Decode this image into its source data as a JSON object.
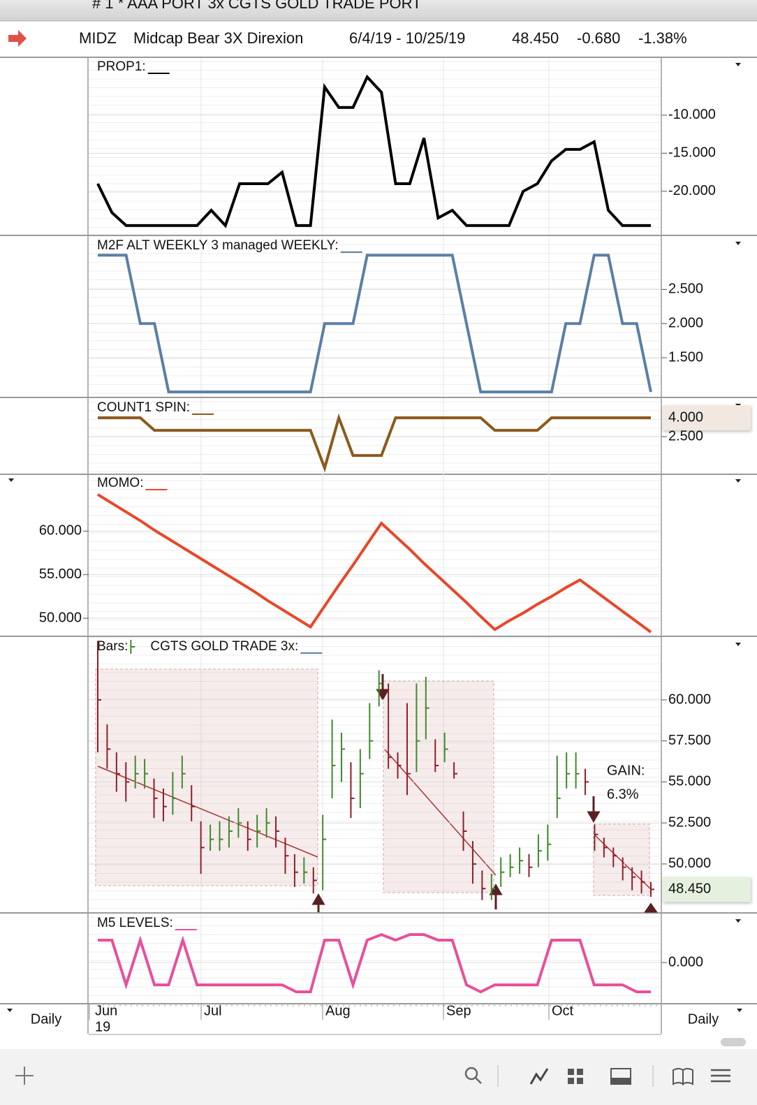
{
  "header": {
    "window_title": "# 1 * AAA PORT 3x CGTS GOLD TRADE PORT",
    "symbol": "MIDZ",
    "name": "Midcap Bear 3X Direxion",
    "range": "6/4/19 - 10/25/19",
    "last": "48.450",
    "change": "-0.680",
    "change_pct": "-1.38%"
  },
  "x_axis": {
    "labels": [
      "Jun",
      "Jul",
      "Aug",
      "Sep",
      "Oct"
    ],
    "year": "19",
    "period": "Daily"
  },
  "chart_data": [
    {
      "type": "line",
      "title": "PROP1:",
      "axis_side": "right",
      "ylim": [
        -25.7,
        -2.4
      ],
      "yticks": [
        {
          "value": -10,
          "label": "-10.000"
        },
        {
          "value": -15,
          "label": "-15.000"
        },
        {
          "value": -20,
          "label": "-20.000"
        }
      ],
      "series": [
        {
          "color": "#000000",
          "values": [
            -19,
            -22.8,
            -24.5,
            -24.5,
            -24.5,
            -24.5,
            -24.5,
            -24.5,
            -22.5,
            -24.5,
            -19,
            -19,
            -19,
            -17.5,
            -24.5,
            -24.5,
            -6.3,
            -9,
            -9,
            -5,
            -7,
            -19,
            -19,
            -13,
            -23.5,
            -22.5,
            -24.5,
            -24.5,
            -24.5,
            -24.5,
            -20,
            -19,
            -16,
            -14.5,
            -14.5,
            -13.5,
            -22.5,
            -24.5,
            -24.5,
            -24.5
          ]
        }
      ]
    },
    {
      "type": "line",
      "title": "M2F ALT WEEKLY 3 managed WEEKLY:",
      "axis_side": "right",
      "ylim": [
        0.93,
        3.28
      ],
      "yticks": [
        {
          "value": 2.5,
          "label": "2.500"
        },
        {
          "value": 2,
          "label": "2.000"
        },
        {
          "value": 1.5,
          "label": "1.500"
        }
      ],
      "series": [
        {
          "color": "#5b7fa6",
          "values": [
            3,
            3,
            3,
            2,
            2,
            1,
            1,
            1,
            1,
            1,
            1,
            1,
            1,
            1,
            1,
            1,
            2,
            2,
            2,
            3,
            3,
            3,
            3,
            3,
            3,
            3,
            2,
            1,
            1,
            1,
            1,
            1,
            1,
            2,
            2,
            3,
            3,
            2,
            2,
            1
          ]
        }
      ]
    },
    {
      "type": "line",
      "title": "COUNT1 SPIN:",
      "axis_side": "right",
      "ylim": [
        -0.44,
        5.56
      ],
      "yticks": [
        {
          "value": 2.5,
          "label": "2.500"
        }
      ],
      "current": {
        "value": 4,
        "label": "4.000"
      },
      "current_color": "#f1e8e1",
      "series": [
        {
          "color": "#8c5a1c",
          "values": [
            4,
            4,
            4,
            4,
            3,
            3,
            3,
            3,
            3,
            3,
            3,
            3,
            3,
            3,
            3,
            3,
            0,
            4,
            1,
            1,
            1,
            4,
            4,
            4,
            4,
            4,
            4,
            4,
            3,
            3,
            3,
            3,
            4,
            4,
            4,
            4,
            4,
            4,
            4,
            4
          ]
        }
      ]
    },
    {
      "type": "line",
      "title": "MOMO:",
      "axis_side": "left",
      "ylim": [
        48,
        66.6
      ],
      "yticks": [
        {
          "value": 60,
          "label": "60.000"
        },
        {
          "value": 55,
          "label": "55.000"
        },
        {
          "value": 50,
          "label": "50.000"
        }
      ],
      "series": [
        {
          "color": "#e8472a",
          "values": [
            64.2,
            63.2,
            62.2,
            61.2,
            60.1,
            59.1,
            58.1,
            57.1,
            56.1,
            55.1,
            54.1,
            53.1,
            52.0,
            51.0,
            50.0,
            49.0,
            51.4,
            53.8,
            56.1,
            58.5,
            60.9,
            59.4,
            57.9,
            56.3,
            54.8,
            53.3,
            51.8,
            50.2,
            48.7,
            49.7,
            50.6,
            51.6,
            52.5,
            53.5,
            54.4,
            53.2,
            52.0,
            50.8,
            49.6,
            48.4
          ]
        }
      ]
    },
    {
      "type": "ohlc",
      "title": "Bars:",
      "subtitle": "CGTS  GOLD TRADE 3x:",
      "axis_side": "right",
      "ylim": [
        47.06,
        63.83
      ],
      "yticks": [
        {
          "value": 60,
          "label": "60.000"
        },
        {
          "value": 57.5,
          "label": "57.500"
        },
        {
          "value": 55,
          "label": "55.000"
        },
        {
          "value": 52.5,
          "label": "52.500"
        },
        {
          "value": 50,
          "label": "50.000"
        }
      ],
      "current": {
        "value": 48.45,
        "label": "48.450"
      },
      "current_color": "#e6f0de",
      "color": "#5b7fa6",
      "up_color": "#3f8a2a",
      "down_color": "#8e1f2a",
      "annotations": [
        "GAIN:",
        "6.3%"
      ],
      "bars": {
        "high": [
          63.6,
          58.5,
          56.8,
          56.2,
          56.6,
          56.4,
          55.2,
          54.6,
          55.6,
          56.6,
          54.8,
          52.6,
          52.4,
          52.6,
          52.9,
          53.4,
          52.6,
          53.0,
          53.4,
          52.9,
          51.6,
          50.6,
          50.4,
          49.8,
          53.0,
          58.8,
          58.0,
          56.2,
          57.0,
          59.8,
          61.8,
          61.0,
          56.8,
          59.8,
          61.0,
          61.4,
          57.6,
          58.0,
          56.2,
          53.2,
          51.4,
          49.6,
          49.4,
          50.4,
          50.6,
          51.0,
          50.6,
          51.8,
          52.4,
          56.6,
          56.8,
          56.8,
          55.8,
          52.4,
          51.6,
          51.0,
          50.4,
          49.8,
          49.6,
          48.9
        ],
        "low": [
          56.8,
          55.8,
          54.4,
          53.8,
          54.6,
          54.6,
          52.8,
          52.6,
          53.0,
          54.6,
          52.6,
          49.4,
          50.8,
          50.8,
          51.0,
          51.6,
          50.8,
          51.0,
          51.6,
          51.0,
          49.4,
          48.6,
          48.8,
          48.2,
          48.4,
          54.0,
          55.0,
          52.8,
          53.4,
          56.4,
          59.6,
          55.8,
          55.2,
          54.2,
          55.6,
          57.6,
          55.6,
          56.2,
          55.2,
          50.8,
          48.8,
          47.8,
          47.8,
          48.6,
          49.2,
          49.4,
          49.2,
          49.8,
          50.2,
          52.8,
          54.6,
          54.6,
          54.2,
          50.8,
          50.4,
          49.8,
          49.0,
          48.4,
          48.2,
          48.0
        ],
        "close": [
          60.0,
          57.0,
          55.5,
          55.0,
          55.5,
          55.5,
          54.0,
          53.5,
          54.0,
          55.5,
          53.5,
          51.0,
          51.5,
          51.5,
          52.0,
          52.5,
          51.5,
          52.0,
          52.5,
          52.0,
          50.5,
          49.5,
          49.5,
          49.0,
          51.5,
          56.0,
          57.0,
          54.0,
          55.5,
          57.5,
          61.0,
          56.5,
          56.0,
          55.5,
          57.5,
          59.5,
          56.0,
          57.0,
          55.5,
          52.0,
          50.0,
          48.5,
          48.5,
          49.5,
          49.8,
          50.2,
          49.8,
          50.8,
          51.2,
          54.0,
          55.5,
          55.5,
          55.0,
          51.8,
          51.0,
          50.5,
          49.8,
          49.2,
          48.9,
          48.45
        ]
      }
    },
    {
      "type": "line",
      "title": "M5 LEVELS:",
      "axis_side": "right",
      "ylim": [
        -1.45,
        1.75
      ],
      "yticks": [
        {
          "value": 0,
          "label": "0.000"
        }
      ],
      "series": [
        {
          "color": "#e8509a",
          "values": [
            0.8,
            0.8,
            -0.8,
            0.8,
            -0.8,
            -0.8,
            0.8,
            -0.8,
            -0.8,
            -0.8,
            -0.8,
            -0.8,
            -0.8,
            -0.8,
            -1.05,
            -1.05,
            0.8,
            0.8,
            -0.8,
            0.8,
            1.0,
            0.8,
            1.0,
            1.0,
            0.8,
            0.8,
            -0.8,
            -1.05,
            -0.8,
            -0.8,
            -0.8,
            -0.8,
            0.8,
            0.8,
            0.8,
            -0.8,
            -0.8,
            -0.8,
            -1.05,
            -1.05
          ]
        }
      ]
    }
  ]
}
